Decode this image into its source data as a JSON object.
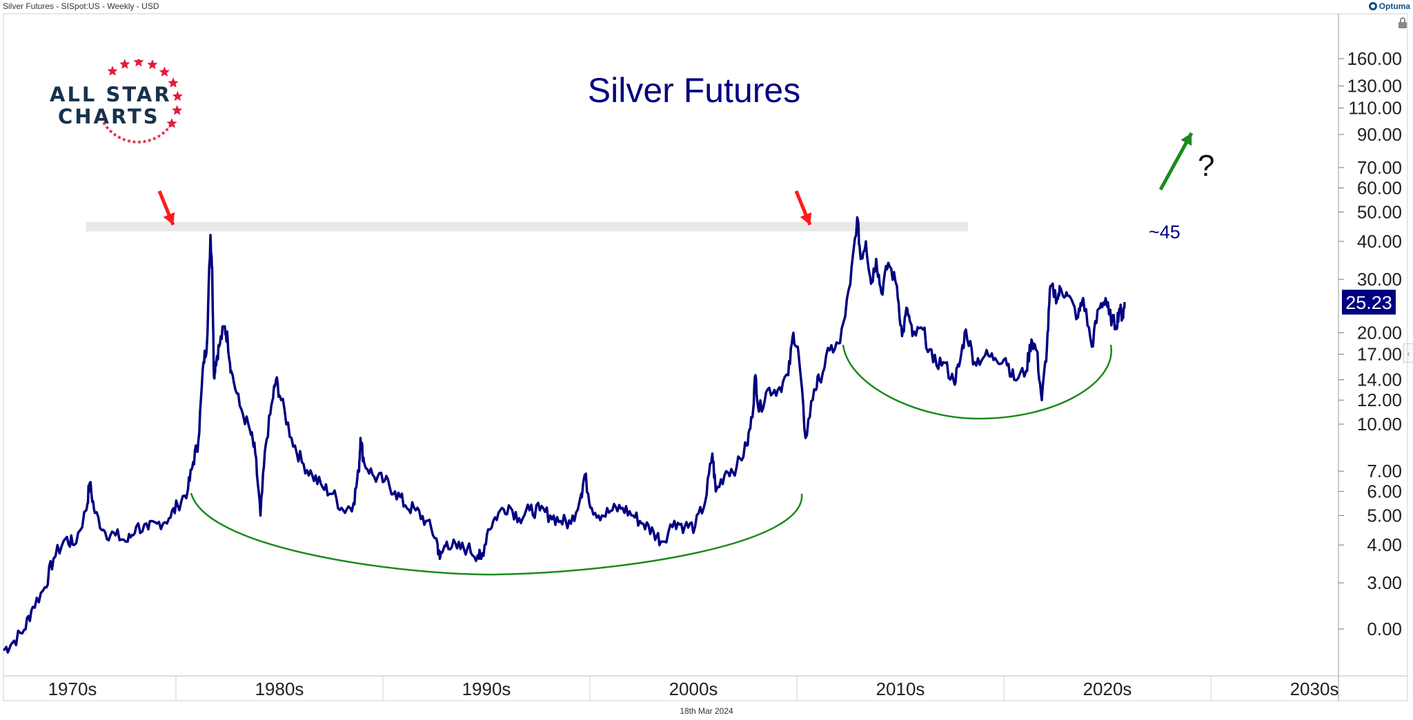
{
  "header": {
    "title": "Silver Futures - SISpot:US - Weekly - USD",
    "brand": "Optuma"
  },
  "footer": {
    "date": "18th Mar 2024"
  },
  "logo": {
    "line1": "ALL STAR",
    "line2": "CHARTS"
  },
  "colors": {
    "series": "#000080",
    "arrow_red": "#ff1a1a",
    "arc_green": "#1a8a1a",
    "resistance_band": "#d9d9d9",
    "last_price_bg": "#000080"
  },
  "chart_data": {
    "type": "line",
    "title": "Silver Futures",
    "xlabel": "",
    "ylabel": "",
    "y_scale": "log",
    "x_tick_labels": [
      "1970s",
      "1980s",
      "1990s",
      "2000s",
      "2010s",
      "2020s",
      "2030s"
    ],
    "y_tick_labels": [
      "160.00",
      "130.00",
      "110.00",
      "90.00",
      "70.00",
      "60.00",
      "50.00",
      "40.00",
      "30.00",
      "20.00",
      "17.00",
      "14.00",
      "12.00",
      "10.00",
      "7.00",
      "6.00",
      "5.00",
      "4.00",
      "3.00",
      "0.00"
    ],
    "last_price": "25.23",
    "resistance_label": "~45",
    "question_mark": "?",
    "series": [
      {
        "points": [
          [
            "1970-01",
            1.8
          ],
          [
            "1970-06",
            1.9
          ],
          [
            "1971-01",
            2.1
          ],
          [
            "1971-06",
            2.5
          ],
          [
            "1972-01",
            2.9
          ],
          [
            "1972-06",
            3.6
          ],
          [
            "1973-01",
            4.2
          ],
          [
            "1973-06",
            4.0
          ],
          [
            "1974-01",
            5.2
          ],
          [
            "1974-03",
            6.4
          ],
          [
            "1974-06",
            5.1
          ],
          [
            "1974-12",
            4.4
          ],
          [
            "1975-06",
            4.3
          ],
          [
            "1976-01",
            4.1
          ],
          [
            "1976-06",
            4.6
          ],
          [
            "1977-01",
            4.5
          ],
          [
            "1977-06",
            4.7
          ],
          [
            "1978-01",
            4.9
          ],
          [
            "1978-06",
            5.4
          ],
          [
            "1978-12",
            6.1
          ],
          [
            "1979-03",
            7.5
          ],
          [
            "1979-06",
            8.8
          ],
          [
            "1979-09",
            16.0
          ],
          [
            "1979-11",
            18.5
          ],
          [
            "1980-01",
            42.0
          ],
          [
            "1980-02",
            33.0
          ],
          [
            "1980-03",
            14.5
          ],
          [
            "1980-04",
            16.0
          ],
          [
            "1980-06",
            18.0
          ],
          [
            "1980-09",
            21.0
          ],
          [
            "1980-11",
            19.0
          ],
          [
            "1981-01",
            15.0
          ],
          [
            "1981-06",
            11.5
          ],
          [
            "1981-12",
            9.5
          ],
          [
            "1982-03",
            8.0
          ],
          [
            "1982-06",
            5.0
          ],
          [
            "1982-09",
            8.5
          ],
          [
            "1983-01",
            12.0
          ],
          [
            "1983-03",
            14.0
          ],
          [
            "1983-06",
            12.0
          ],
          [
            "1983-12",
            9.0
          ],
          [
            "1984-06",
            7.5
          ],
          [
            "1984-12",
            6.8
          ],
          [
            "1985-06",
            6.2
          ],
          [
            "1985-12",
            5.9
          ],
          [
            "1986-06",
            5.2
          ],
          [
            "1986-12",
            5.5
          ],
          [
            "1987-03",
            7.0
          ],
          [
            "1987-04",
            9.0
          ],
          [
            "1987-06",
            7.5
          ],
          [
            "1987-12",
            6.7
          ],
          [
            "1988-06",
            6.5
          ],
          [
            "1988-12",
            6.0
          ],
          [
            "1989-06",
            5.4
          ],
          [
            "1989-12",
            5.2
          ],
          [
            "1990-06",
            4.8
          ],
          [
            "1990-12",
            4.2
          ],
          [
            "1991-02",
            3.6
          ],
          [
            "1991-06",
            4.1
          ],
          [
            "1991-12",
            3.9
          ],
          [
            "1992-06",
            3.9
          ],
          [
            "1992-12",
            3.7
          ],
          [
            "1993-02",
            3.6
          ],
          [
            "1993-06",
            4.5
          ],
          [
            "1993-12",
            5.1
          ],
          [
            "1994-06",
            5.4
          ],
          [
            "1994-12",
            4.9
          ],
          [
            "1995-06",
            5.2
          ],
          [
            "1995-12",
            5.2
          ],
          [
            "1996-06",
            5.0
          ],
          [
            "1996-12",
            4.8
          ],
          [
            "1997-06",
            4.7
          ],
          [
            "1997-12",
            5.9
          ],
          [
            "1998-02",
            6.8
          ],
          [
            "1998-06",
            5.3
          ],
          [
            "1998-12",
            5.0
          ],
          [
            "1999-06",
            5.2
          ],
          [
            "1999-12",
            5.3
          ],
          [
            "2000-06",
            5.0
          ],
          [
            "2000-12",
            4.7
          ],
          [
            "2001-06",
            4.4
          ],
          [
            "2001-11",
            4.1
          ],
          [
            "2002-06",
            4.8
          ],
          [
            "2002-12",
            4.6
          ],
          [
            "2003-06",
            4.6
          ],
          [
            "2003-12",
            5.6
          ],
          [
            "2004-04",
            8.0
          ],
          [
            "2004-06",
            6.0
          ],
          [
            "2004-12",
            7.0
          ],
          [
            "2005-06",
            7.2
          ],
          [
            "2005-12",
            8.5
          ],
          [
            "2006-03",
            10.5
          ],
          [
            "2006-05",
            14.5
          ],
          [
            "2006-07",
            11.0
          ],
          [
            "2006-12",
            13.0
          ],
          [
            "2007-06",
            13.0
          ],
          [
            "2007-12",
            14.5
          ],
          [
            "2008-03",
            20.0
          ],
          [
            "2008-06",
            17.0
          ],
          [
            "2008-10",
            9.0
          ],
          [
            "2009-03",
            13.0
          ],
          [
            "2009-06",
            14.0
          ],
          [
            "2009-12",
            17.5
          ],
          [
            "2010-06",
            18.5
          ],
          [
            "2010-12",
            29.0
          ],
          [
            "2011-04",
            48.0
          ],
          [
            "2011-06",
            35.0
          ],
          [
            "2011-09",
            40.0
          ],
          [
            "2011-12",
            29.0
          ],
          [
            "2012-03",
            35.0
          ],
          [
            "2012-06",
            27.0
          ],
          [
            "2012-10",
            34.0
          ],
          [
            "2013-03",
            28.5
          ],
          [
            "2013-06",
            19.5
          ],
          [
            "2013-09",
            24.0
          ],
          [
            "2013-12",
            19.5
          ],
          [
            "2014-06",
            20.5
          ],
          [
            "2014-12",
            16.0
          ],
          [
            "2015-06",
            16.0
          ],
          [
            "2015-12",
            13.8
          ],
          [
            "2016-03",
            15.5
          ],
          [
            "2016-07",
            20.5
          ],
          [
            "2016-12",
            16.0
          ],
          [
            "2017-06",
            16.8
          ],
          [
            "2017-12",
            16.5
          ],
          [
            "2018-06",
            16.5
          ],
          [
            "2018-11",
            14.0
          ],
          [
            "2019-06",
            15.0
          ],
          [
            "2019-09",
            19.0
          ],
          [
            "2019-12",
            17.5
          ],
          [
            "2020-03",
            12.0
          ],
          [
            "2020-06",
            18.0
          ],
          [
            "2020-08",
            28.5
          ],
          [
            "2020-12",
            26.0
          ],
          [
            "2021-02",
            28.0
          ],
          [
            "2021-06",
            26.5
          ],
          [
            "2021-12",
            22.5
          ],
          [
            "2022-03",
            26.0
          ],
          [
            "2022-08",
            18.0
          ],
          [
            "2022-12",
            24.0
          ],
          [
            "2023-04",
            26.0
          ],
          [
            "2023-06",
            23.0
          ],
          [
            "2023-10",
            21.0
          ],
          [
            "2023-12",
            24.0
          ],
          [
            "2024-02",
            22.5
          ],
          [
            "2024-03",
            25.23
          ]
        ]
      }
    ]
  }
}
